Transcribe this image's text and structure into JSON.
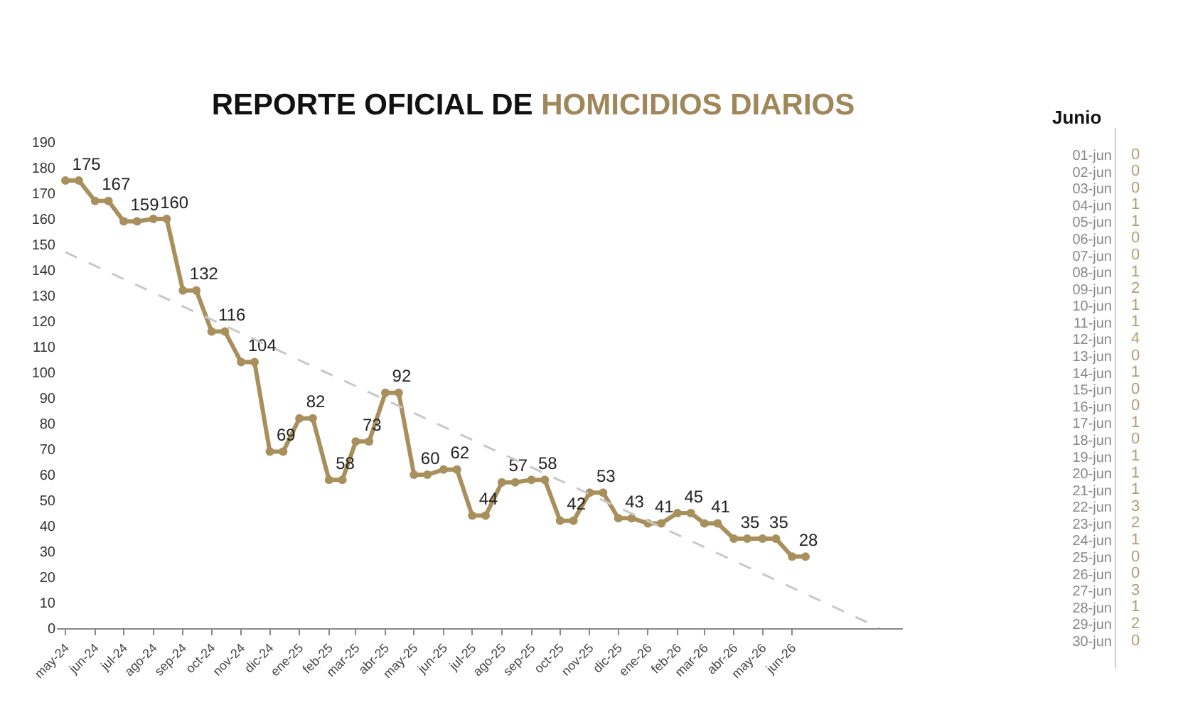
{
  "chart_data": [
    {
      "type": "line",
      "title": "REPORTE OFICIAL DE HOMICIDIOS DIARIOS",
      "xlim": [
        "2024-04-22",
        "2026-09-25"
      ],
      "ylim": [
        0,
        190
      ],
      "yticks": [
        0,
        10,
        20,
        30,
        40,
        50,
        60,
        70,
        80,
        90,
        100,
        110,
        120,
        130,
        140,
        150,
        160,
        170,
        180,
        190
      ],
      "xticks": [
        {
          "value": "2024-05-01",
          "label": "may-24"
        },
        {
          "value": "2024-06-01",
          "label": "jun-24"
        },
        {
          "value": "2024-07-01",
          "label": "jul-24"
        },
        {
          "value": "2024-08-01",
          "label": "ago-24"
        },
        {
          "value": "2024-09-01",
          "label": "sep-24"
        },
        {
          "value": "2024-10-01",
          "label": "oct-24"
        },
        {
          "value": "2024-11-01",
          "label": "nov-24"
        },
        {
          "value": "2024-12-01",
          "label": "dic-24"
        },
        {
          "value": "2025-01-01",
          "label": "ene-25"
        },
        {
          "value": "2025-02-01",
          "label": "feb-25"
        },
        {
          "value": "2025-03-01",
          "label": "mar-25"
        },
        {
          "value": "2025-04-01",
          "label": "abr-25"
        },
        {
          "value": "2025-05-01",
          "label": "may-25"
        },
        {
          "value": "2025-06-01",
          "label": "jun-25"
        },
        {
          "value": "2025-07-01",
          "label": "jul-25"
        },
        {
          "value": "2025-08-01",
          "label": "ago-25"
        },
        {
          "value": "2025-09-01",
          "label": "sep-25"
        },
        {
          "value": "2025-10-01",
          "label": "oct-25"
        },
        {
          "value": "2025-11-01",
          "label": "nov-25"
        },
        {
          "value": "2025-12-01",
          "label": "dic-25"
        },
        {
          "value": "2026-01-01",
          "label": "ene-26"
        },
        {
          "value": "2026-02-01",
          "label": "feb-26"
        },
        {
          "value": "2026-03-01",
          "label": "mar-26"
        },
        {
          "value": "2026-04-01",
          "label": "abr-26"
        },
        {
          "value": "2026-05-01",
          "label": "may-26"
        },
        {
          "value": "2026-06-01",
          "label": "jun-26"
        }
      ],
      "marker": "circle",
      "line_style": "solid",
      "series": [
        {
          "color": "#a88f5c",
          "x": [
            "2024-05-01",
            "2024-05-15",
            "2024-06-01",
            "2024-06-15",
            "2024-07-01",
            "2024-07-15",
            "2024-08-01",
            "2024-08-15",
            "2024-09-01",
            "2024-09-15",
            "2024-10-01",
            "2024-10-15",
            "2024-11-01",
            "2024-11-15",
            "2024-12-01",
            "2024-12-15",
            "2025-01-01",
            "2025-01-15",
            "2025-02-01",
            "2025-02-15",
            "2025-03-01",
            "2025-03-15",
            "2025-04-01",
            "2025-04-15",
            "2025-05-01",
            "2025-05-15",
            "2025-06-01",
            "2025-06-15",
            "2025-07-01",
            "2025-07-15",
            "2025-08-01",
            "2025-08-15",
            "2025-09-01",
            "2025-09-15",
            "2025-10-01",
            "2025-10-15",
            "2025-11-01",
            "2025-11-15",
            "2025-12-01",
            "2025-12-15",
            "2026-01-01",
            "2026-01-15",
            "2026-02-01",
            "2026-02-15",
            "2026-03-01",
            "2026-03-15",
            "2026-04-01",
            "2026-04-15",
            "2026-05-01",
            "2026-05-15",
            "2026-06-01",
            "2026-06-15"
          ],
          "values": [
            175,
            175,
            167,
            167,
            159,
            159,
            160,
            160,
            132,
            132,
            116,
            116,
            104,
            104,
            69,
            69,
            82,
            82,
            58,
            58,
            73,
            73,
            92,
            92,
            60,
            60,
            62,
            62,
            44,
            44,
            57,
            57,
            58,
            58,
            42,
            42,
            53,
            53,
            43,
            43,
            41,
            41,
            45,
            45,
            41,
            41,
            35,
            35,
            35,
            35,
            28,
            28
          ],
          "value_labels": [
            "175",
            null,
            "167",
            null,
            "159",
            null,
            "160",
            null,
            "132",
            null,
            "116",
            null,
            "104",
            null,
            "69",
            null,
            "82",
            null,
            "58",
            null,
            "73",
            null,
            "92",
            null,
            "60",
            null,
            "62",
            null,
            "44",
            null,
            "57",
            null,
            "58",
            null,
            "42",
            null,
            "53",
            null,
            "43",
            null,
            "41",
            null,
            "45",
            null,
            "41",
            null,
            "35",
            null,
            "35",
            null,
            "28",
            null
          ]
        },
        {
          "color": "#c8c8c8",
          "line_style": "dashed",
          "marker": "none",
          "x": [
            "2024-05-01",
            "2026-09-01"
          ],
          "values": [
            147,
            0
          ]
        }
      ]
    },
    {
      "type": "other",
      "title": "Junio",
      "color": "#b59e6e",
      "data_labels": true,
      "categories": [
        "01-jun",
        "02-jun",
        "03-jun",
        "04-jun",
        "05-jun",
        "06-jun",
        "07-jun",
        "08-jun",
        "09-jun",
        "10-jun",
        "11-jun",
        "12-jun",
        "13-jun",
        "14-jun",
        "15-jun",
        "16-jun",
        "17-jun",
        "18-jun",
        "19-jun",
        "20-jun",
        "21-jun",
        "22-jun",
        "23-jun",
        "24-jun",
        "25-jun",
        "26-jun",
        "27-jun",
        "28-jun",
        "29-jun",
        "30-jun"
      ],
      "values": [
        0,
        0,
        0,
        1,
        1,
        0,
        0,
        1,
        2,
        1,
        1,
        4,
        0,
        1,
        0,
        0,
        1,
        0,
        1,
        1,
        1,
        3,
        2,
        1,
        0,
        0,
        3,
        1,
        2,
        0
      ]
    }
  ]
}
